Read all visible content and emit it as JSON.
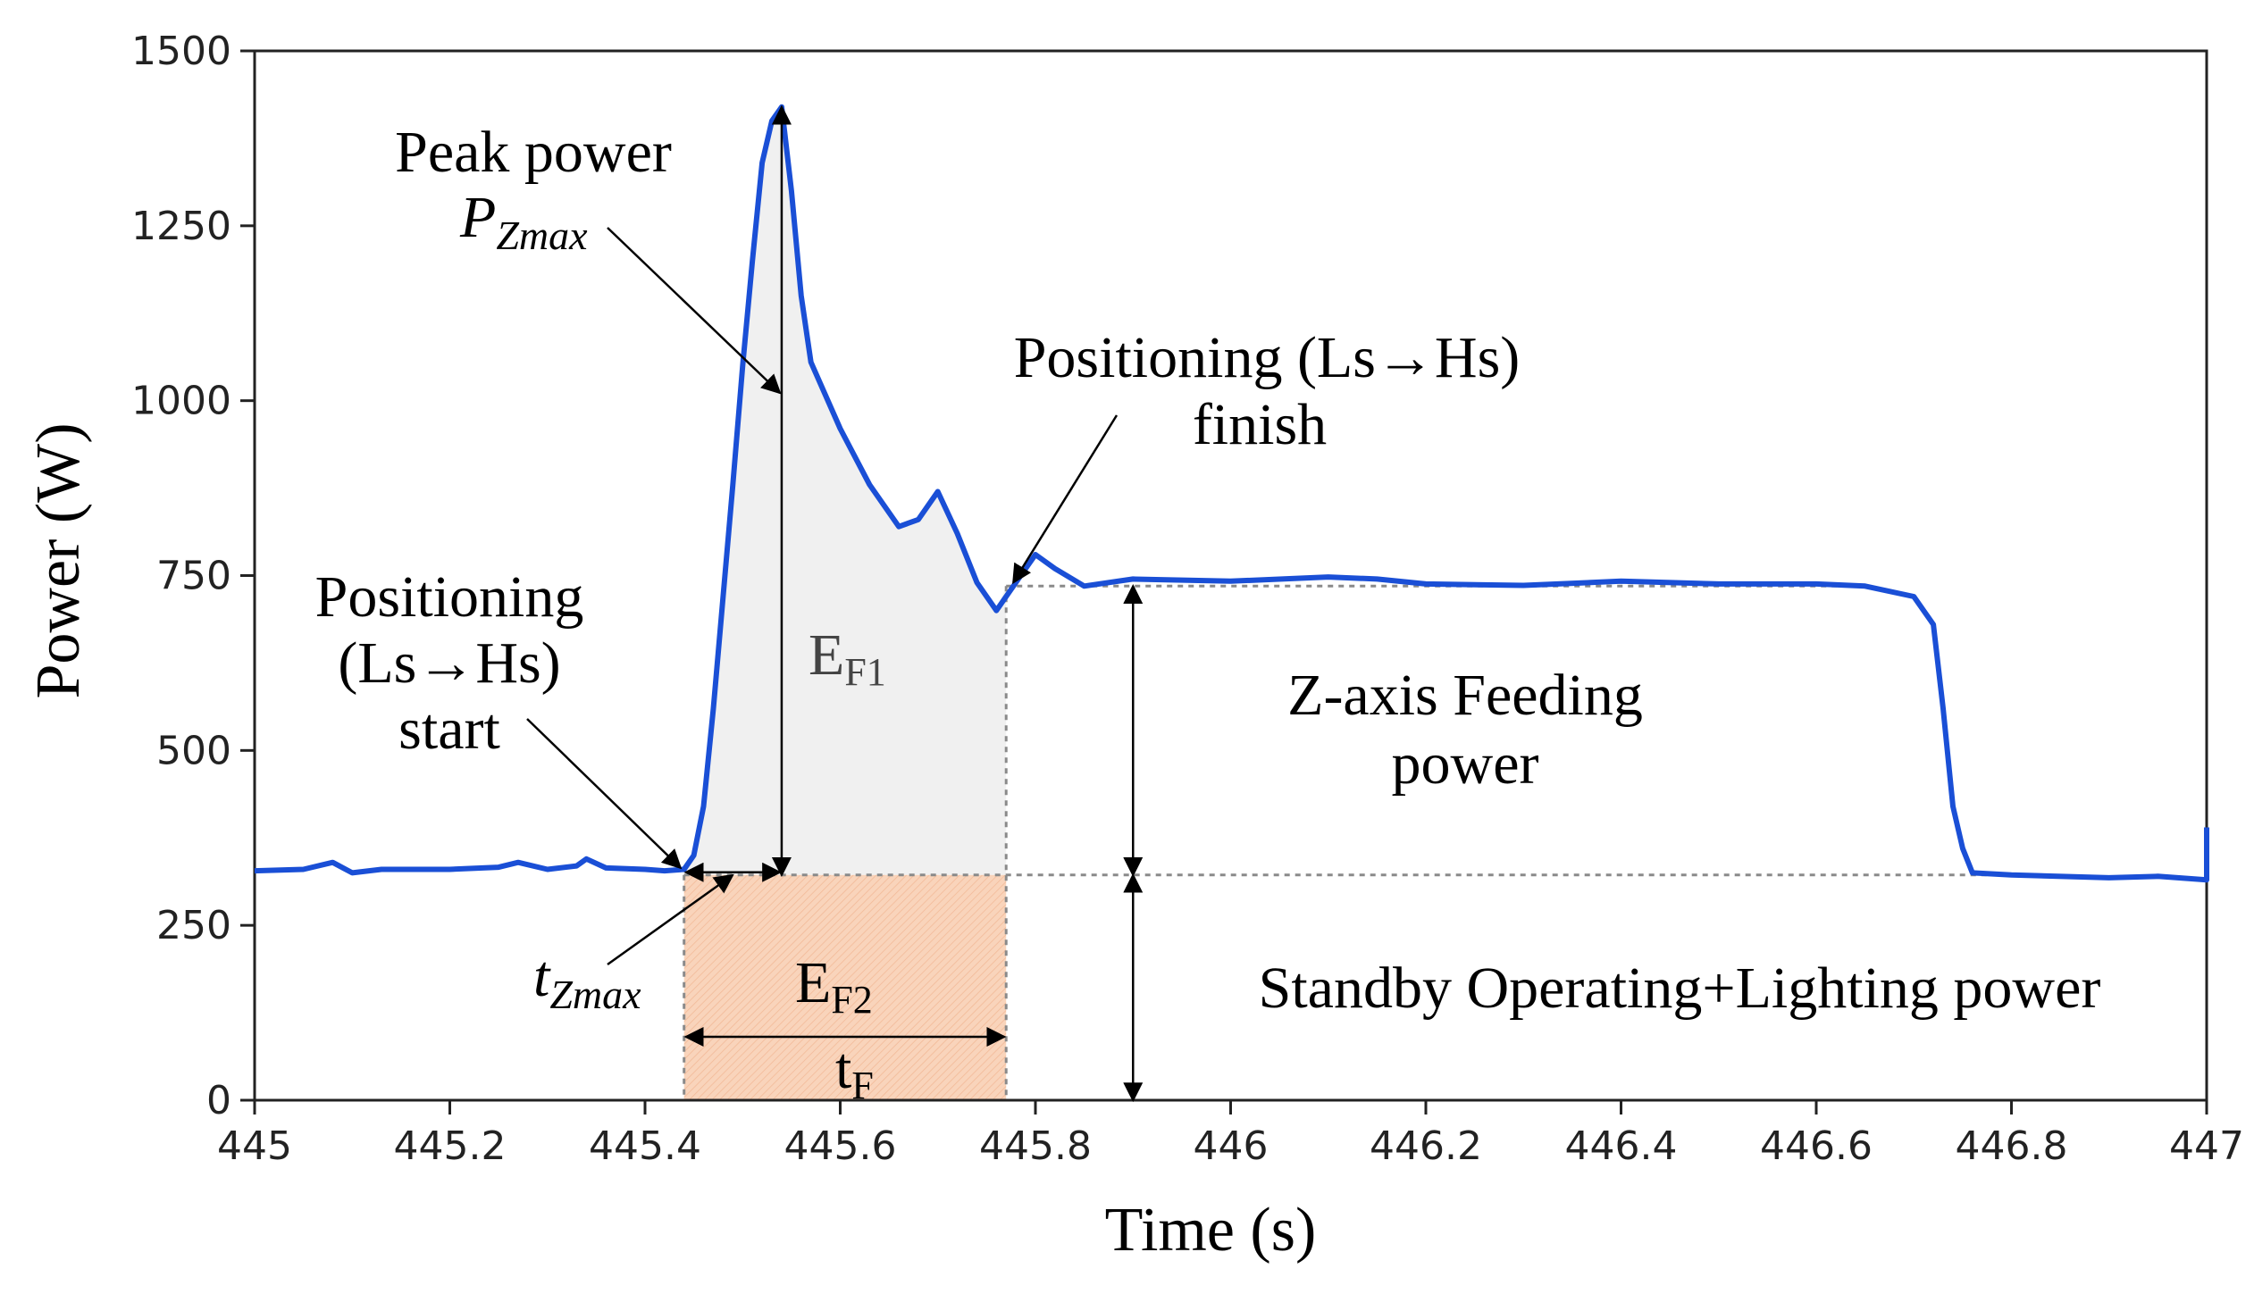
{
  "chart_data": {
    "type": "line",
    "title": "",
    "xlabel": "Time (s)",
    "ylabel": "Power (W)",
    "xlim": [
      445,
      447
    ],
    "ylim": [
      0,
      1500
    ],
    "x_ticks": [
      445,
      445.2,
      445.4,
      445.6,
      445.8,
      446,
      446.2,
      446.4,
      446.6,
      446.8,
      447
    ],
    "x_tick_labels": [
      "445",
      "445.2",
      "445.4",
      "445.6",
      "445.8",
      "446",
      "446.2",
      "446.4",
      "446.6",
      "446.8",
      "447"
    ],
    "y_ticks": [
      0,
      250,
      500,
      750,
      1000,
      1250,
      1500
    ],
    "y_tick_labels": [
      "0",
      "250",
      "500",
      "750",
      "1000",
      "1250",
      "1500"
    ],
    "grid": false,
    "series": [
      {
        "name": "Power",
        "color": "#1a4fd6",
        "x": [
          445.0,
          445.05,
          445.08,
          445.1,
          445.13,
          445.2,
          445.25,
          445.27,
          445.3,
          445.33,
          445.34,
          445.36,
          445.4,
          445.42,
          445.44,
          445.45,
          445.46,
          445.47,
          445.48,
          445.49,
          445.5,
          445.51,
          445.52,
          445.53,
          445.54,
          445.55,
          445.56,
          445.57,
          445.6,
          445.63,
          445.66,
          445.68,
          445.7,
          445.72,
          445.74,
          445.76,
          445.78,
          445.8,
          445.82,
          445.85,
          445.9,
          446.0,
          446.1,
          446.15,
          446.2,
          446.3,
          446.4,
          446.5,
          446.6,
          446.65,
          446.7,
          446.72,
          446.73,
          446.74,
          446.75,
          446.76,
          446.8,
          446.9,
          446.95,
          447.0,
          447.0
        ],
        "values": [
          328,
          330,
          340,
          325,
          330,
          330,
          333,
          340,
          330,
          335,
          345,
          332,
          330,
          328,
          330,
          350,
          420,
          560,
          720,
          880,
          1050,
          1200,
          1340,
          1400,
          1420,
          1300,
          1150,
          1055,
          960,
          880,
          820,
          830,
          870,
          810,
          740,
          700,
          740,
          780,
          760,
          735,
          745,
          742,
          748,
          745,
          738,
          736,
          742,
          738,
          738,
          735,
          720,
          680,
          560,
          420,
          360,
          325,
          322,
          318,
          320,
          315,
          390
        ]
      }
    ],
    "reference_levels": {
      "standby_power": 322,
      "feeding_power": 735
    },
    "annotations": {
      "peak_title": "Peak power",
      "peak_symbol": "P",
      "peak_sub": "Zmax",
      "finish_line1": "Positioning (Ls→Hs)",
      "finish_line2": "finish",
      "start_line1": "Positioning",
      "start_line2": "(Ls→Hs)",
      "start_line3": "start",
      "ef1_main": "E",
      "ef1_sub": "F1",
      "ef2_main": "E",
      "ef2_sub": "F2",
      "tf_main": "t",
      "tf_sub": "F",
      "tzmax_main": "t",
      "tzmax_sub": "Zmax",
      "feeding_line1": "Z-axis Feeding",
      "feeding_line2": "power",
      "standby_label": "Standby Operating+Lighting power"
    },
    "markers": {
      "t_start": 445.44,
      "t_peak": 445.54,
      "t_finish": 445.77,
      "t_measure": 445.9
    },
    "colors": {
      "line": "#1a4fd6",
      "ef1_fill": "#f0f0f0",
      "ef2_fill": "#f9d4bb",
      "dotted": "#8a8a8a"
    }
  }
}
